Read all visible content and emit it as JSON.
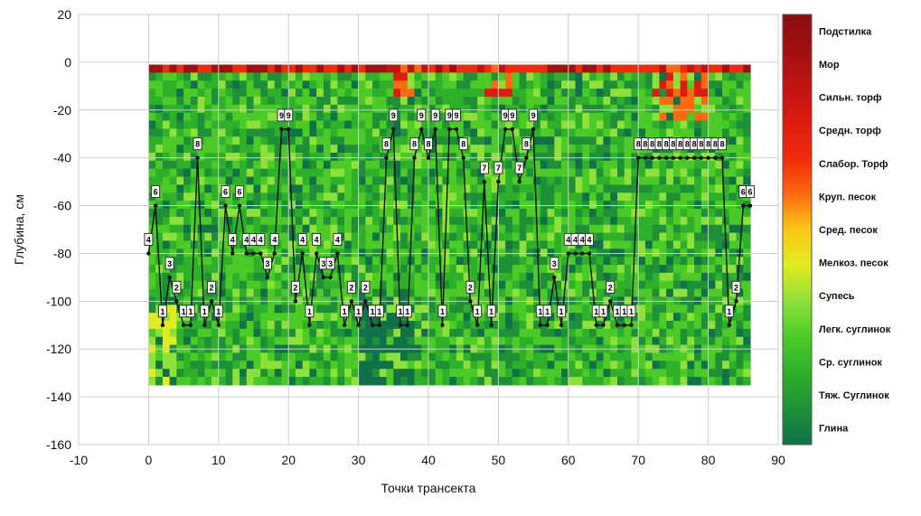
{
  "chart_data": {
    "type": "heatmap",
    "overlay_type": "line",
    "xlabel": "Точки трансекта",
    "ylabel": "Глубина, см",
    "xlim": [
      -10,
      90
    ],
    "ylim": [
      -160,
      20
    ],
    "xticks": [
      -10,
      0,
      10,
      20,
      30,
      40,
      50,
      60,
      70,
      80,
      90
    ],
    "yticks": [
      20,
      0,
      -20,
      -40,
      -60,
      -80,
      -100,
      -120,
      -140,
      -160
    ],
    "grid": true,
    "legend_placement": "right",
    "legend": [
      {
        "label": "Подстилка",
        "color": "#8b0d0d"
      },
      {
        "label": "Мор",
        "color": "#a01010"
      },
      {
        "label": "Сильн. торф",
        "color": "#c01414"
      },
      {
        "label": "Средн. торф",
        "color": "#dc1c10"
      },
      {
        "label": "Слабор. Торф",
        "color": "#f02a0c"
      },
      {
        "label": "Круп. песок",
        "color": "#fb6a10"
      },
      {
        "label": "Сред. песок",
        "color": "#fcc618"
      },
      {
        "label": "Мелкоз. песок",
        "color": "#e0ec20"
      },
      {
        "label": "Супесь",
        "color": "#8ee03a"
      },
      {
        "label": "Легк. суглинок",
        "color": "#4ccb28"
      },
      {
        "label": "Ср. суглинок",
        "color": "#2fb02a"
      },
      {
        "label": "Тяж. Суглинок",
        "color": "#1f9038"
      },
      {
        "label": "Глина",
        "color": "#117248"
      }
    ],
    "series": [
      {
        "x": [
          0,
          1,
          2,
          3,
          4,
          5,
          6,
          7,
          8,
          9,
          10,
          11,
          12,
          13,
          14,
          15,
          16,
          17,
          18,
          19,
          20,
          21,
          22,
          23,
          24,
          25,
          26,
          27,
          28,
          29,
          30,
          31,
          32,
          33,
          34,
          35,
          36,
          37,
          38,
          39,
          40,
          41,
          42,
          43,
          44,
          45,
          46,
          47,
          48,
          49,
          50,
          51,
          52,
          53,
          54,
          55,
          56,
          57,
          58,
          59,
          60,
          61,
          62,
          63,
          64,
          65,
          66,
          67,
          68,
          69,
          70,
          71,
          72,
          73,
          74,
          75,
          76,
          77,
          78,
          79,
          80,
          81,
          82,
          83,
          84,
          85,
          86
        ],
        "values": [
          -80,
          -60,
          -110,
          -90,
          -100,
          -110,
          -110,
          -40,
          -110,
          -100,
          -110,
          -60,
          -80,
          -60,
          -80,
          -80,
          -80,
          -90,
          -80,
          -28,
          -28,
          -100,
          -80,
          -110,
          -80,
          -90,
          -90,
          -80,
          -110,
          -100,
          -110,
          -100,
          -110,
          -110,
          -40,
          -28,
          -110,
          -110,
          -40,
          -28,
          -40,
          -28,
          -110,
          -28,
          -28,
          -40,
          -100,
          -110,
          -50,
          -110,
          -50,
          -28,
          -28,
          -50,
          -40,
          -28,
          -110,
          -110,
          -90,
          -110,
          -80,
          -80,
          -80,
          -80,
          -110,
          -110,
          -100,
          -110,
          -110,
          -110,
          -40,
          -40,
          -40,
          -40,
          -40,
          -40,
          -40,
          -40,
          -40,
          -40,
          -40,
          -40,
          -40,
          -110,
          -100,
          -60,
          -60
        ],
        "labels": [
          "4",
          "6",
          "1",
          "3",
          "2",
          "1",
          "1",
          "8",
          "1",
          "2",
          "1",
          "6",
          "4",
          "6",
          "4",
          "4",
          "4",
          "3",
          "4",
          "9",
          "9",
          "2",
          "4",
          "1",
          "4",
          "3",
          "3",
          "4",
          "1",
          "2",
          "1",
          "2",
          "1",
          "1",
          "8",
          "9",
          "1",
          "1",
          "8",
          "9",
          "8",
          "9",
          "1",
          "9",
          "9",
          "8",
          "2",
          "1",
          "7",
          "1",
          "7",
          "9",
          "9",
          "7",
          "8",
          "9",
          "1",
          "1",
          "3",
          "1",
          "4",
          "4",
          "4",
          "4",
          "1",
          "1",
          "2",
          "1",
          "1",
          "1",
          "8",
          "8",
          "8",
          "8",
          "8",
          "8",
          "8",
          "8",
          "8",
          "8",
          "8",
          "8",
          "8",
          "1",
          "2",
          "6",
          "6"
        ]
      }
    ]
  }
}
